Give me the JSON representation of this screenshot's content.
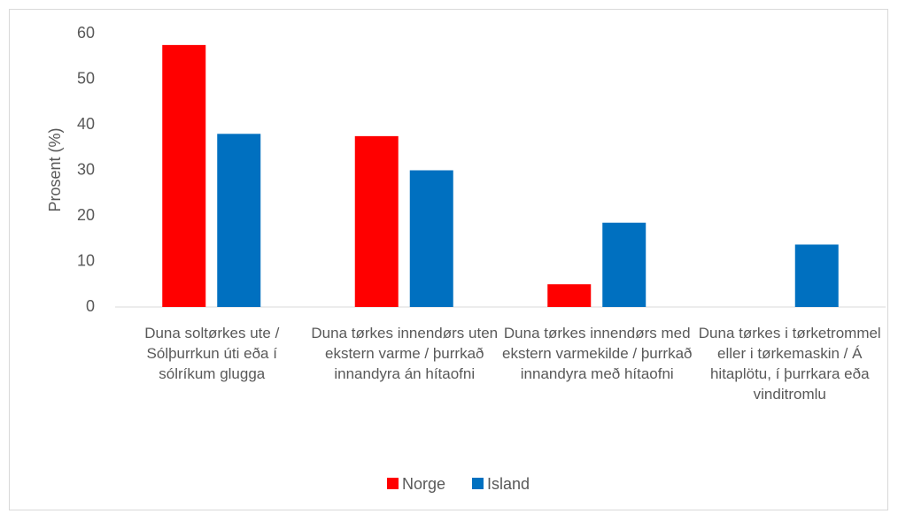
{
  "chart_data": {
    "type": "bar",
    "y_label": "Prosent (%)",
    "categories": [
      "Duna soltørkes ute / Sólþurrkun úti eða í sólríkum glugga",
      "Duna tørkes innendørs uten ekstern varme / þurrkað innandyra án hítaofni",
      "Duna tørkes innendørs med ekstern varmekilde / þurrkað innandyra með hítaofni",
      "Duna tørkes i tørketrommel eller i tørkemaskin / Á hitaplötu, í þurrkara eða vinditromlu"
    ],
    "series": [
      {
        "name": "Norge",
        "color": "#ff0000",
        "values": [
          57.5,
          37.5,
          5,
          0
        ]
      },
      {
        "name": "Island",
        "color": "#0070c0",
        "values": [
          38,
          30,
          18.5,
          13.7
        ]
      }
    ],
    "ylim": [
      0,
      60
    ],
    "yticks": [
      0,
      10,
      20,
      30,
      40,
      50,
      60
    ],
    "grid": false,
    "legend": "bottom"
  }
}
